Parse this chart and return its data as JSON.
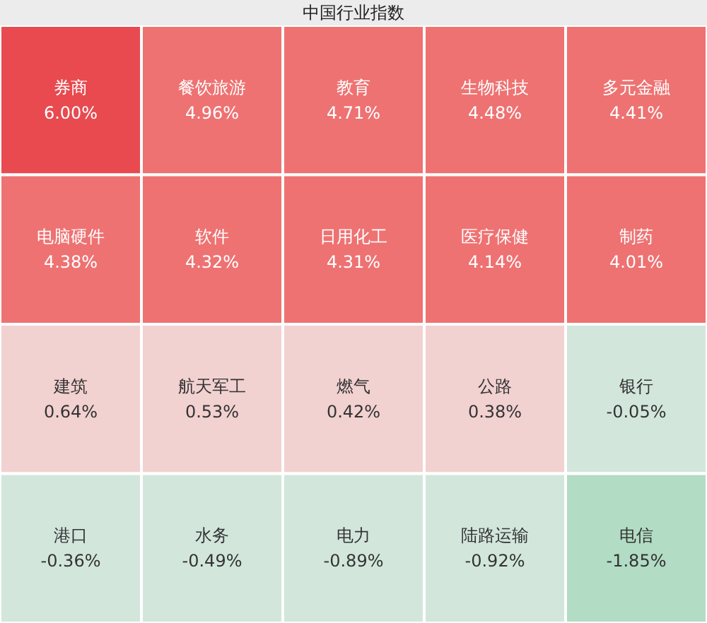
{
  "chart_data": {
    "type": "other",
    "title": "中国行业指数",
    "categories": [
      "券商",
      "餐饮旅游",
      "教育",
      "生物科技",
      "多元金融",
      "电脑硬件",
      "软件",
      "日用化工",
      "医疗保健",
      "制药",
      "建筑",
      "航天军工",
      "燃气",
      "公路",
      "银行",
      "港口",
      "水务",
      "电力",
      "陆路运输",
      "电信"
    ],
    "values": [
      6.0,
      4.96,
      4.71,
      4.48,
      4.41,
      4.38,
      4.32,
      4.31,
      4.14,
      4.01,
      0.64,
      0.53,
      0.42,
      0.38,
      -0.05,
      -0.36,
      -0.49,
      -0.89,
      -0.92,
      -1.85
    ],
    "value_labels": [
      "6.00%",
      "4.96%",
      "4.71%",
      "4.48%",
      "4.41%",
      "4.38%",
      "4.32%",
      "4.31%",
      "4.14%",
      "4.01%",
      "0.64%",
      "0.53%",
      "0.42%",
      "0.38%",
      "-0.05%",
      "-0.36%",
      "-0.49%",
      "-0.89%",
      "-0.92%",
      "-1.85%"
    ]
  }
}
